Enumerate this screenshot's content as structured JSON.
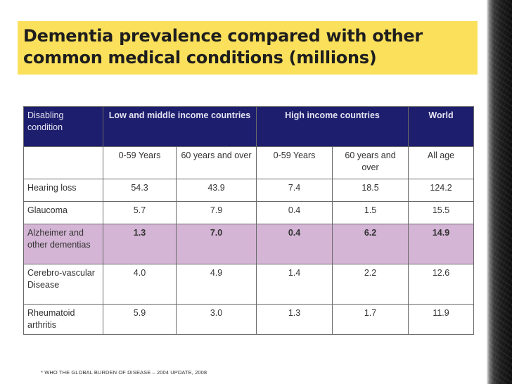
{
  "slide": {
    "title": "Dementia prevalence compared with other common medical conditions (millions)",
    "footnote": "* WHO THE GLOBAL BURDEN OF DISEASE – 2004 UPDATE, 2008",
    "colors": {
      "title_bar": "#fbe05c",
      "header_row": "#1e1e6e",
      "highlight_row": "#d4b5d5"
    }
  },
  "table": {
    "headers": {
      "condition": "Disabling condition",
      "low_middle": "Low and middle income countries",
      "high": "High income countries",
      "world": "World"
    },
    "subheaders": [
      "0-59 Years",
      "60 years and over",
      "0-59 Years",
      "60 years and over",
      "All age"
    ],
    "rows": [
      {
        "label": "Hearing loss",
        "values": [
          "54.3",
          "43.9",
          "7.4",
          "18.5",
          "124.2"
        ]
      },
      {
        "label": "Glaucoma",
        "values": [
          "5.7",
          "7.9",
          "0.4",
          "1.5",
          "15.5"
        ]
      },
      {
        "label": "Alzheimer and other dementias",
        "values": [
          "1.3",
          "7.0",
          "0.4",
          "6.2",
          "14.9"
        ],
        "highlighted": true
      },
      {
        "label": "Cerebro-vascular Disease",
        "values": [
          "4.0",
          "4.9",
          "1.4",
          "2.2",
          "12.6"
        ]
      },
      {
        "label": "Rheumatoid arthritis",
        "values": [
          "5.9",
          "3.0",
          "1.3",
          "1.7",
          "11.9"
        ]
      }
    ]
  }
}
